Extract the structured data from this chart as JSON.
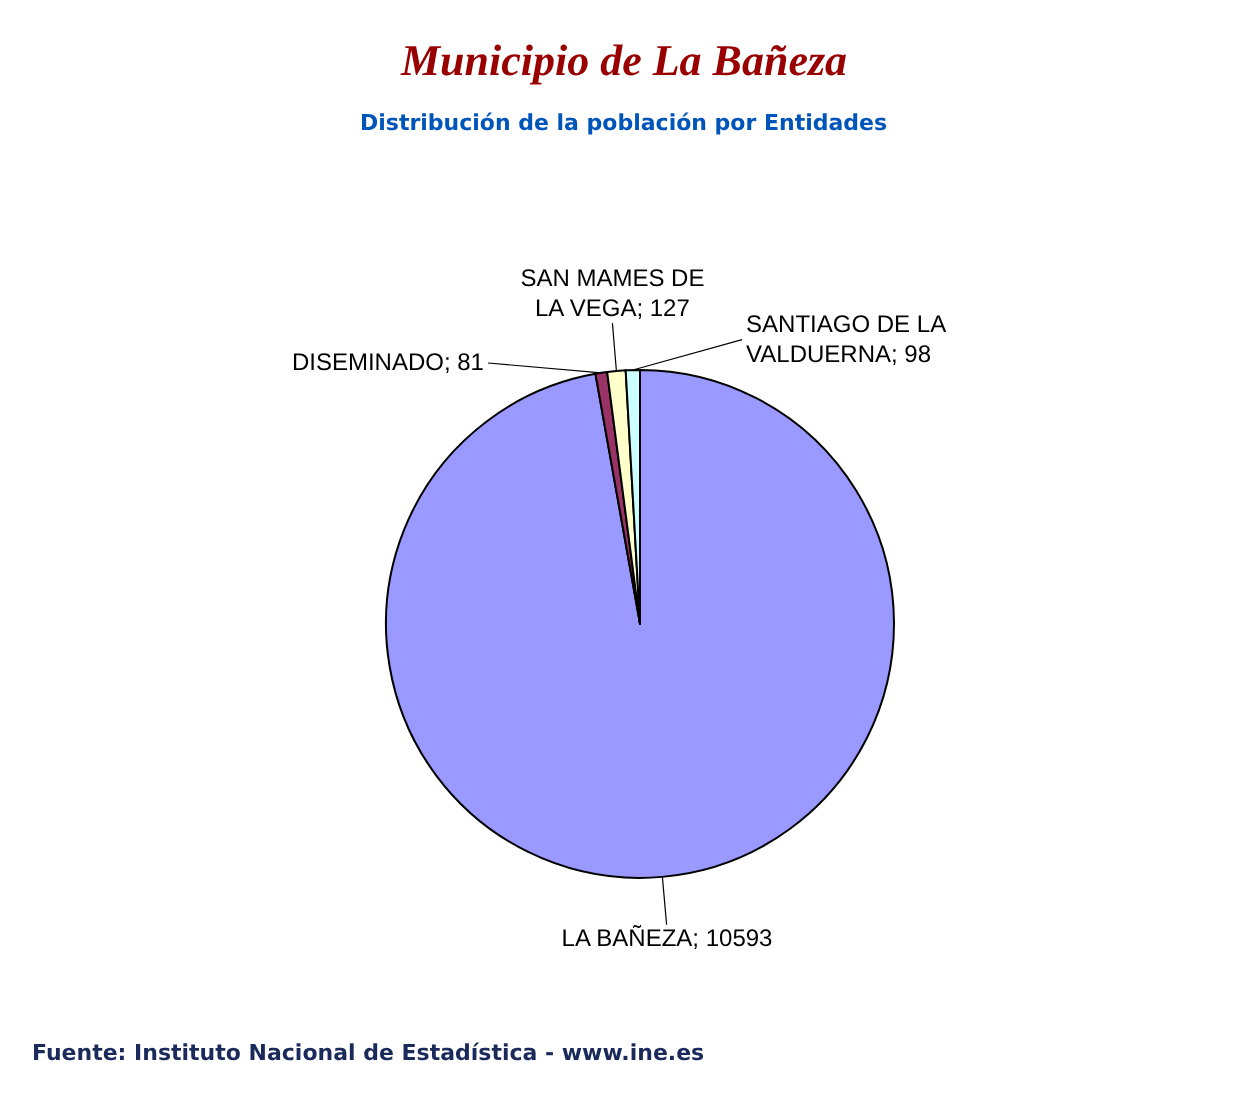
{
  "chart_data": {
    "type": "pie",
    "title": "Municipio de La Bañeza",
    "subtitle": "Distribución de la población por Entidades",
    "categories": [
      "LA BAÑEZA",
      "DISEMINADO",
      "SAN MAMES DE LA VEGA",
      "SANTIAGO DE LA VALDUERNA"
    ],
    "values": [
      10593,
      81,
      127,
      98
    ],
    "colors": [
      "#9999ff",
      "#993366",
      "#ffffcc",
      "#ccffff"
    ],
    "value_labels": [
      "; 10593",
      "; 81",
      "; 127",
      "; 98"
    ],
    "legend": false,
    "annotations": [
      "Fuente: Instituto Nacional de Estadística - www.ine.es"
    ]
  }
}
